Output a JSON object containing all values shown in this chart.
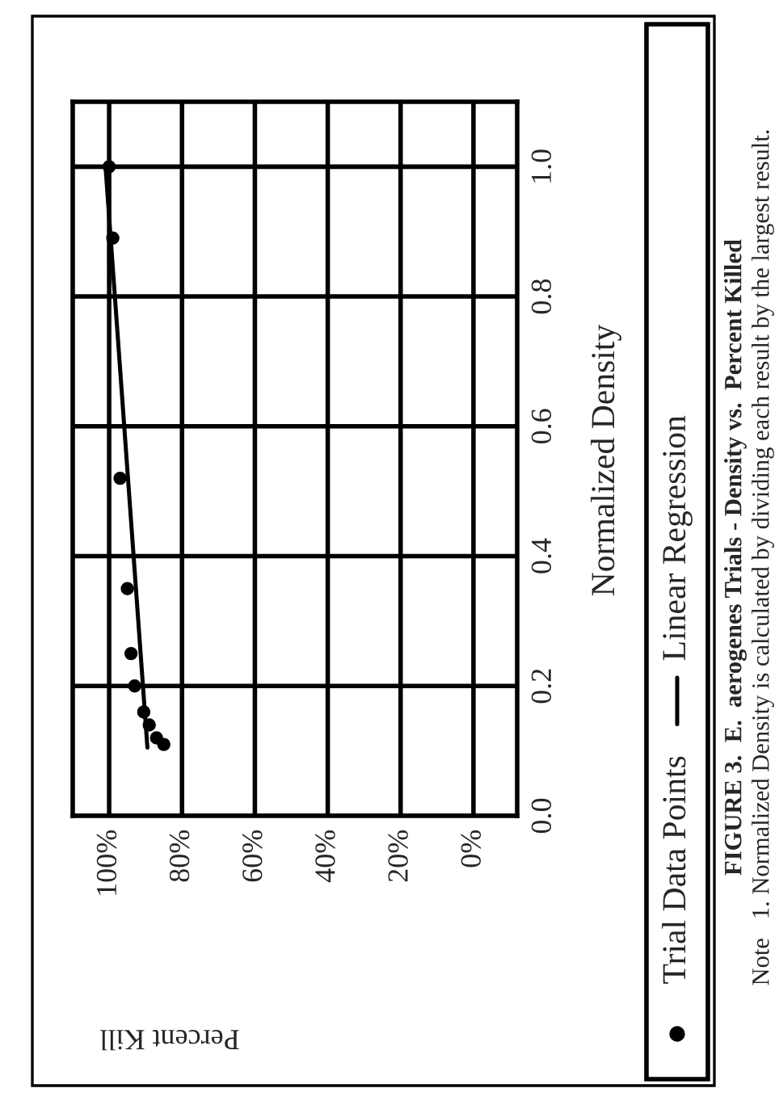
{
  "chart_data": {
    "type": "scatter",
    "title": "FIGURE 3.  E.  aerogenes Trials - Density vs.  Percent Killed",
    "xlabel": "Percent Kill",
    "ylabel": "Normalized Density",
    "annotations": [
      "Note   1. Normalized Density is calculated by dividing each result by the largest result."
    ],
    "series": [
      {
        "name": "Trial Data Points",
        "color": "#000000",
        "marker": "circle",
        "x": [
          100,
          99,
          97,
          95,
          94,
          93,
          90.5,
          89,
          87,
          85
        ],
        "values": [
          1.0,
          0.89,
          0.52,
          0.35,
          0.25,
          0.2,
          0.16,
          0.14,
          0.12,
          0.11
        ]
      },
      {
        "name": "Linear Regression",
        "type": "line",
        "color": "#000000",
        "line_style": "solid",
        "x": [
          89.5,
          101
        ],
        "values": [
          0.105,
          1.0
        ]
      }
    ],
    "xlim": [
      110,
      -12
    ],
    "xticks": [
      {
        "value": 0,
        "label": "0%"
      },
      {
        "value": 20,
        "label": "20%"
      },
      {
        "value": 40,
        "label": "40%"
      },
      {
        "value": 60,
        "label": "60%"
      },
      {
        "value": 80,
        "label": "80%"
      },
      {
        "value": 100,
        "label": "100%"
      }
    ],
    "ylim": [
      0,
      1.1
    ],
    "yticks": [
      {
        "value": 0,
        "label": "0.0"
      },
      {
        "value": 0.2,
        "label": "0.2"
      },
      {
        "value": 0.4,
        "label": "0.4"
      },
      {
        "value": 0.6,
        "label": "0.6"
      },
      {
        "value": 0.8,
        "label": "0.8"
      },
      {
        "value": 1.0,
        "label": "1.0"
      }
    ],
    "grid": true,
    "legend": "right"
  }
}
